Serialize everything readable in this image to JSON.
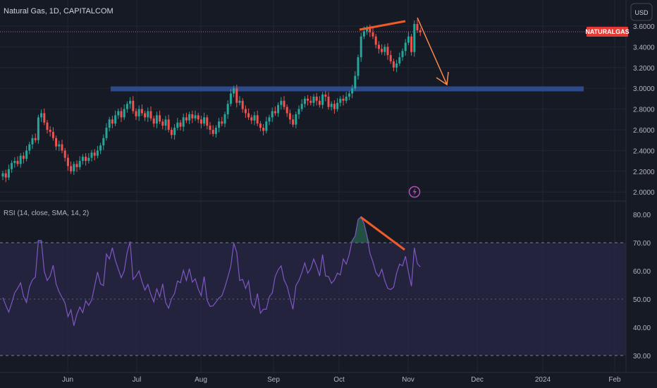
{
  "chart_title": "Natural Gas, 1D, CAPITALCOM",
  "currency_button": "USD",
  "symbol_tag": "NATURALGAS",
  "rsi_title": "RSI (14, close, SMA, 14, 2)",
  "colors": {
    "background": "#161a25",
    "up": "#26a69a",
    "down": "#ef5350",
    "rsi_line": "#7e57c2",
    "rsi_band": "#2a2745",
    "support_line": "#2c4a8a",
    "annotation": "#f05a28",
    "arrow": "#ff8a50",
    "price_line": "#c25a96",
    "symbol_tag_bg": "#e53935"
  },
  "chart_data": [
    {
      "type": "candlestick",
      "title": "Natural Gas, 1D, CAPITALCOM",
      "y_axis_ticks": [
        "3.6000",
        "3.4000",
        "3.2000",
        "3.0000",
        "2.8000",
        "2.6000",
        "2.4000",
        "2.2000",
        "2.0000"
      ],
      "ylim": [
        1.92,
        3.78
      ],
      "x_axis_ticks": [
        "Jun",
        "Jul",
        "Aug",
        "Sep",
        "Oct",
        "Nov",
        "Dec",
        "2024",
        "Feb"
      ],
      "current_price": 3.546,
      "closes": [
        2.18,
        2.14,
        2.22,
        2.28,
        2.3,
        2.27,
        2.35,
        2.32,
        2.4,
        2.46,
        2.52,
        2.5,
        2.72,
        2.76,
        2.67,
        2.6,
        2.58,
        2.52,
        2.44,
        2.46,
        2.4,
        2.33,
        2.25,
        2.2,
        2.27,
        2.24,
        2.3,
        2.34,
        2.3,
        2.33,
        2.38,
        2.35,
        2.4,
        2.45,
        2.52,
        2.62,
        2.7,
        2.66,
        2.74,
        2.78,
        2.72,
        2.8,
        2.85,
        2.88,
        2.78,
        2.73,
        2.8,
        2.76,
        2.72,
        2.78,
        2.71,
        2.66,
        2.74,
        2.68,
        2.64,
        2.7,
        2.6,
        2.55,
        2.62,
        2.67,
        2.63,
        2.72,
        2.69,
        2.75,
        2.71,
        2.74,
        2.7,
        2.66,
        2.72,
        2.64,
        2.6,
        2.56,
        2.62,
        2.68,
        2.66,
        2.75,
        2.85,
        2.95,
        3.0,
        2.86,
        2.88,
        2.8,
        2.76,
        2.72,
        2.69,
        2.74,
        2.66,
        2.62,
        2.59,
        2.68,
        2.72,
        2.78,
        2.76,
        2.84,
        2.88,
        2.82,
        2.76,
        2.7,
        2.65,
        2.75,
        2.8,
        2.85,
        2.9,
        2.88,
        2.86,
        2.92,
        2.88,
        2.84,
        2.94,
        2.92,
        2.82,
        2.85,
        2.8,
        2.86,
        2.9,
        2.88,
        2.92,
        2.95,
        3.0,
        3.12,
        3.3,
        3.5,
        3.55,
        3.58,
        3.54,
        3.5,
        3.42,
        3.38,
        3.35,
        3.4,
        3.32,
        3.26,
        3.2,
        3.24,
        3.3,
        3.36,
        3.44,
        3.5,
        3.35,
        3.62,
        3.56,
        3.54
      ]
    },
    {
      "type": "line",
      "title": "RSI (14, close, SMA, 14, 2)",
      "y_axis_ticks": [
        "80.00",
        "70.00",
        "60.00",
        "50.00",
        "40.00",
        "30.00"
      ],
      "ylim": [
        27,
        82
      ],
      "band": [
        30,
        70
      ],
      "midline": 50,
      "series": [
        {
          "values": [
            50.5,
            47.8,
            45.4,
            48.6,
            52.2,
            53.8,
            55.8,
            51.0,
            48.8,
            54.4,
            56.8,
            57.8,
            70.8,
            70.8,
            59.8,
            56.6,
            58.2,
            62.0,
            55.4,
            52.6,
            50.6,
            48.6,
            43.8,
            46.2,
            40.6,
            44.6,
            47.2,
            45.2,
            49.4,
            47.8,
            49.6,
            54.6,
            59.6,
            55.4,
            54.8,
            66.0,
            64.2,
            68.2,
            63.8,
            60.6,
            57.6,
            60.0,
            66.6,
            70.4,
            57.0,
            58.2,
            60.0,
            56.2,
            53.2,
            55.2,
            51.6,
            49.0,
            53.6,
            50.8,
            55.4,
            48.8,
            46.8,
            50.2,
            52.0,
            56.4,
            55.8,
            60.2,
            56.6,
            60.8,
            56.0,
            57.2,
            53.6,
            51.2,
            58.0,
            49.6,
            47.4,
            47.6,
            49.0,
            50.4,
            51.2,
            54.2,
            57.8,
            61.6,
            69.8,
            66.6,
            56.6,
            57.0,
            53.8,
            56.4,
            48.6,
            46.8,
            52.0,
            45.0,
            46.4,
            46.4,
            50.8,
            52.2,
            58.0,
            60.4,
            61.8,
            56.8,
            54.6,
            50.4,
            46.4,
            54.8,
            56.6,
            59.4,
            62.8,
            59.2,
            60.8,
            64.2,
            61.6,
            58.2,
            65.8,
            58.2,
            58.0,
            55.6,
            56.8,
            59.2,
            58.6,
            64.2,
            62.4,
            65.8,
            70.8,
            72.4,
            78.2,
            79.2,
            76.8,
            72.4,
            66.2,
            63.2,
            59.4,
            58.0,
            60.6,
            56.6,
            53.8,
            53.4,
            54.2,
            59.2,
            62.4,
            61.8,
            65.2,
            59.6,
            54.6,
            68.2,
            62.6,
            61.4
          ]
        }
      ]
    }
  ]
}
